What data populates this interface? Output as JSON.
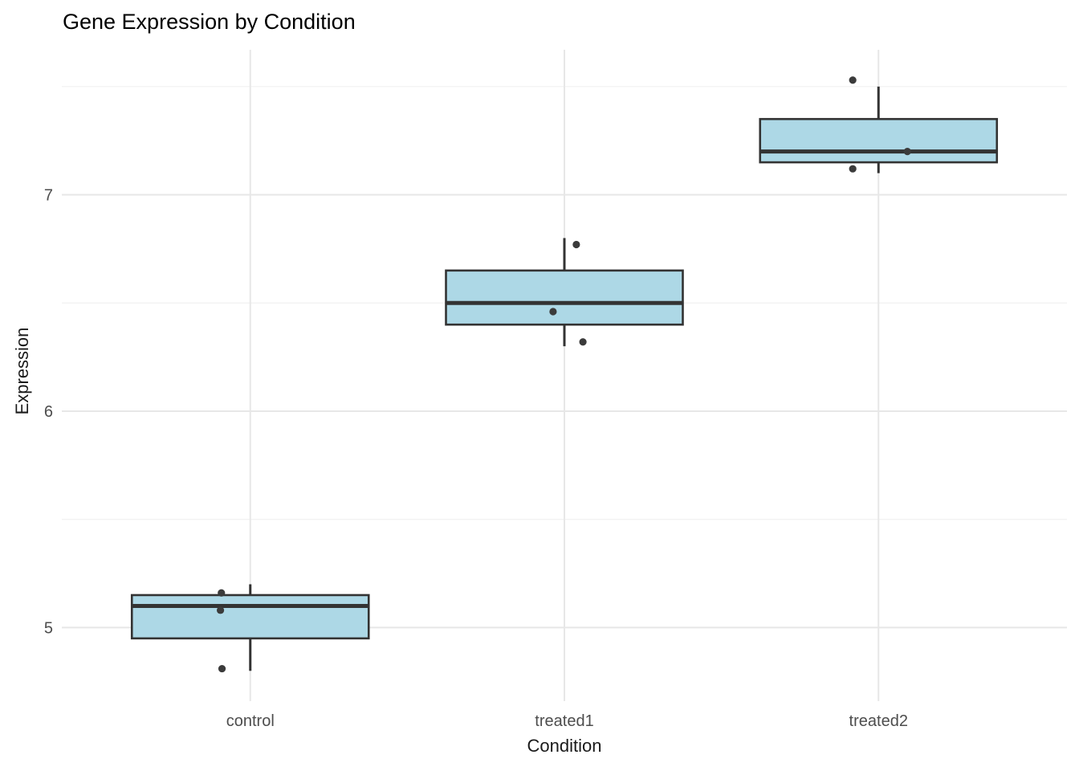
{
  "chart_data": {
    "type": "boxplot",
    "title": "Gene Expression by Condition",
    "xlabel": "Condition",
    "ylabel": "Expression",
    "categories": [
      "control",
      "treated1",
      "treated2"
    ],
    "series": [
      {
        "name": "control",
        "values": [
          4.8,
          5.1,
          5.2
        ],
        "stats": {
          "min": 4.8,
          "q1": 4.95,
          "median": 5.1,
          "q3": 5.15,
          "max": 5.2
        },
        "jitter_points": [
          {
            "x_offset": -0.092,
            "value": 5.16
          },
          {
            "x_offset": -0.095,
            "value": 5.08
          },
          {
            "x_offset": -0.09,
            "value": 4.81
          }
        ]
      },
      {
        "name": "treated1",
        "values": [
          6.3,
          6.5,
          6.8
        ],
        "stats": {
          "min": 6.3,
          "q1": 6.4,
          "median": 6.5,
          "q3": 6.65,
          "max": 6.8
        },
        "jitter_points": [
          {
            "x_offset": 0.038,
            "value": 6.77
          },
          {
            "x_offset": -0.036,
            "value": 6.46
          },
          {
            "x_offset": 0.059,
            "value": 6.32
          }
        ]
      },
      {
        "name": "treated2",
        "values": [
          7.1,
          7.2,
          7.5
        ],
        "stats": {
          "min": 7.1,
          "q1": 7.15,
          "median": 7.2,
          "q3": 7.35,
          "max": 7.5
        },
        "jitter_points": [
          {
            "x_offset": -0.082,
            "value": 7.53
          },
          {
            "x_offset": 0.092,
            "value": 7.2
          },
          {
            "x_offset": -0.082,
            "value": 7.12
          }
        ]
      }
    ],
    "y_ticks": [
      "5",
      "6",
      "7"
    ],
    "y_tick_values": [
      5,
      6,
      7
    ],
    "y_minor_gridline_values": [
      5.5,
      6.5,
      7.5
    ],
    "ylim": [
      4.66,
      7.67
    ],
    "grid": true,
    "legend_position": "none",
    "colors": {
      "background": "#ffffff",
      "box_fill": "#ADD8E6",
      "box_border": "#333333",
      "median_line": "#333333",
      "whisker": "#333333",
      "point": "#3B3B3B",
      "grid_major": "#E7E7E7",
      "grid_minor": "#F0F0F0",
      "tick_label": "#4D4D4D",
      "axis_title": "#1A1A1A",
      "title": "#000000"
    }
  }
}
